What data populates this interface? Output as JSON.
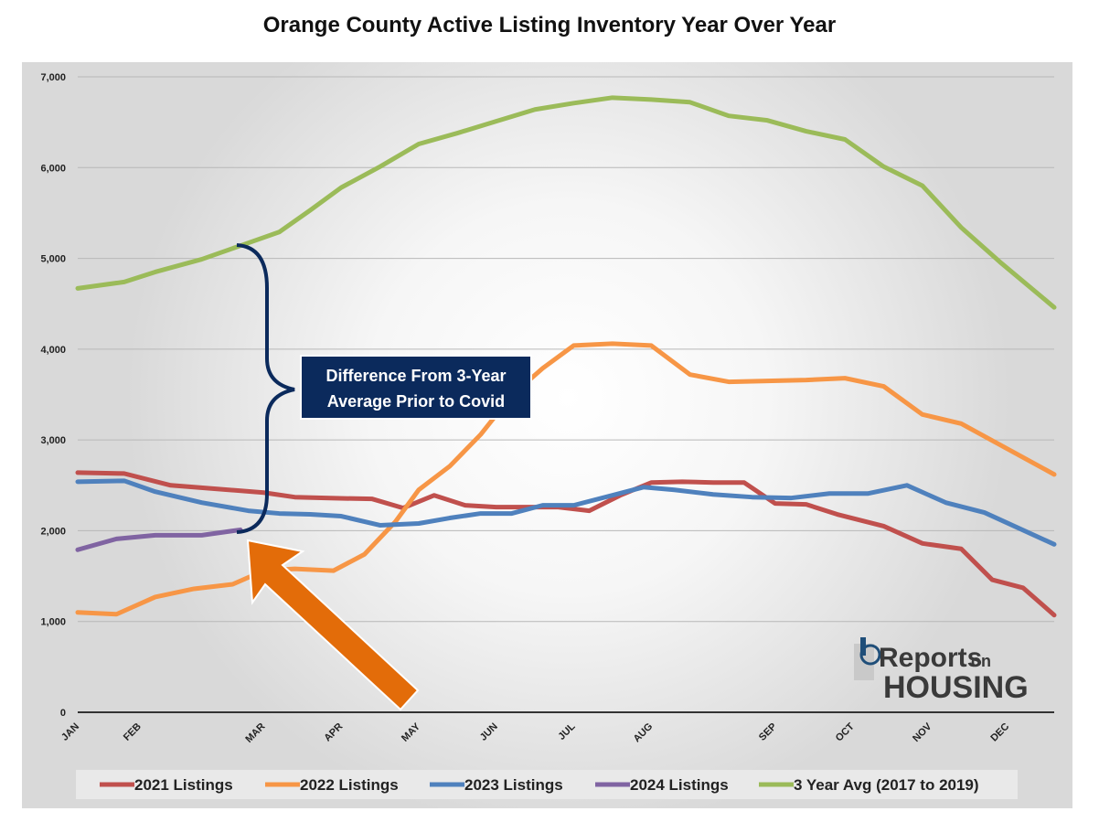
{
  "chart_data": {
    "type": "line",
    "title": "Orange County Active Listing Inventory Year Over Year",
    "xlabel": "",
    "ylabel": "",
    "ylim": [
      0,
      7000
    ],
    "y_ticks": [
      "0",
      "1,000",
      "2,000",
      "3,000",
      "4,000",
      "5,000",
      "6,000",
      "7,000"
    ],
    "month_labels": [
      "JAN",
      "FEB",
      "MAR",
      "APR",
      "MAY",
      "JUN",
      "JUL",
      "AUG",
      "SEP",
      "OCT",
      "NOV",
      "DEC"
    ],
    "month_label_weeks": [
      0,
      4,
      12,
      17,
      22,
      27,
      32,
      37,
      45,
      50,
      55,
      60
    ],
    "week_count": 64,
    "grid": true,
    "legend_position": "bottom",
    "series": [
      {
        "name": "2021 Listings",
        "color": "#c0504d",
        "values": [
          2640,
          2630,
          2500,
          2460,
          2420,
          2370,
          2360,
          2350,
          2250,
          2390,
          2280,
          2260,
          2260,
          2260,
          2220,
          2390,
          2530,
          2540,
          2530,
          2530,
          2300,
          2290,
          2180,
          2050,
          1860,
          1800,
          1460,
          1370,
          1070
        ]
      },
      {
        "name": "2022 Listings",
        "color": "#f79646",
        "values": [
          1100,
          1080,
          1270,
          1360,
          1410,
          1560,
          1580,
          1560,
          1740,
          2100,
          2450,
          2710,
          3060,
          3490,
          3790,
          4040,
          4060,
          4040,
          3720,
          3640,
          3650,
          3660,
          3680,
          3590,
          3280,
          3180,
          2620
        ]
      },
      {
        "name": "2023 Listings",
        "color": "#4f81bd",
        "values": [
          2540,
          2550,
          2430,
          2310,
          2220,
          2190,
          2180,
          2160,
          2060,
          2080,
          2140,
          2190,
          2190,
          2280,
          2280,
          2390,
          2480,
          2450,
          2400,
          2370,
          2360,
          2410,
          2410,
          2500,
          2310,
          2200,
          1850
        ]
      },
      {
        "name": "2024 Listings",
        "color": "#8064a2",
        "values": [
          1790,
          1910,
          1950,
          1950,
          2010
        ]
      },
      {
        "name": "3 Year Avg (2017 to 2019)",
        "color": "#9bbb59",
        "values": [
          4670,
          4740,
          4850,
          4990,
          5140,
          5290,
          5530,
          5780,
          6010,
          6260,
          6380,
          6510,
          6640,
          6710,
          6770,
          6750,
          6720,
          6570,
          6520,
          6400,
          6310,
          6010,
          5800,
          5340,
          4960,
          4460
        ]
      }
    ],
    "annotations": [
      {
        "text_lines": [
          "Difference From 3-Year",
          "Average Prior to Covid"
        ]
      }
    ]
  },
  "logo": {
    "line1": "Reports",
    "line1_small": "on",
    "line2": "HOUSING"
  },
  "colors": {
    "callout_bg": "#0b2a5c",
    "arrow": "#e36c09",
    "brace": "#0b2a5c",
    "grid": "#b8b8b8",
    "axis": "#333333"
  }
}
